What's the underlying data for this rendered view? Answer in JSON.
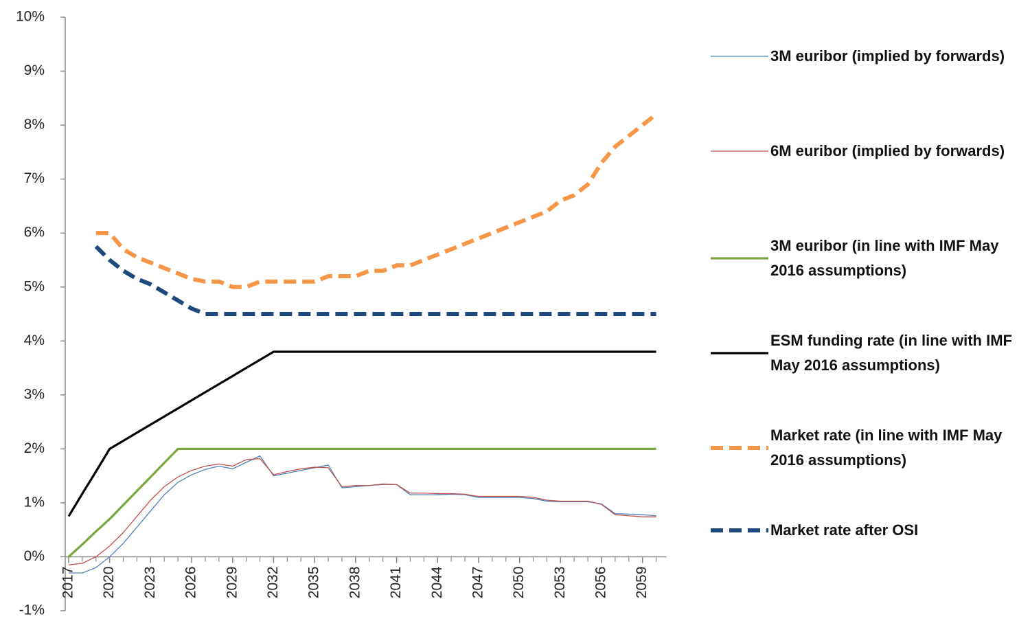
{
  "chart_data": {
    "type": "line",
    "x": [
      2017,
      2018,
      2019,
      2020,
      2021,
      2022,
      2023,
      2024,
      2025,
      2026,
      2027,
      2028,
      2029,
      2030,
      2031,
      2032,
      2033,
      2034,
      2035,
      2036,
      2037,
      2038,
      2039,
      2040,
      2041,
      2042,
      2043,
      2044,
      2045,
      2046,
      2047,
      2048,
      2049,
      2050,
      2051,
      2052,
      2053,
      2054,
      2055,
      2056,
      2057,
      2058,
      2059,
      2060
    ],
    "xlim": [
      2016.75,
      2060.75
    ],
    "xticks": [
      2017,
      2020,
      2023,
      2026,
      2029,
      2032,
      2035,
      2038,
      2041,
      2044,
      2047,
      2050,
      2053,
      2056,
      2059
    ],
    "ylim": [
      -1,
      10
    ],
    "yticks": [
      {
        "value": -1,
        "label": "-1%"
      },
      {
        "value": 0,
        "label": "0%"
      },
      {
        "value": 1,
        "label": "1%"
      },
      {
        "value": 2,
        "label": "2%"
      },
      {
        "value": 3,
        "label": "3%"
      },
      {
        "value": 4,
        "label": "4%"
      },
      {
        "value": 5,
        "label": "5%"
      },
      {
        "value": 6,
        "label": "6%"
      },
      {
        "value": 7,
        "label": "7%"
      },
      {
        "value": 8,
        "label": "8%"
      },
      {
        "value": 9,
        "label": "9%"
      },
      {
        "value": 10,
        "label": "10%"
      }
    ],
    "grid": false,
    "legend": "right",
    "series": [
      {
        "name": "3M euribor (implied by forwards)",
        "color": "#4f81bd",
        "style": "thin",
        "values": [
          -0.3,
          -0.3,
          -0.2,
          0.0,
          0.25,
          0.55,
          0.85,
          1.15,
          1.38,
          1.52,
          1.62,
          1.68,
          1.63,
          1.75,
          1.87,
          1.5,
          1.55,
          1.6,
          1.65,
          1.7,
          1.28,
          1.3,
          1.32,
          1.34,
          1.34,
          1.15,
          1.15,
          1.15,
          1.16,
          1.15,
          1.1,
          1.1,
          1.1,
          1.1,
          1.08,
          1.03,
          1.02,
          1.02,
          1.02,
          0.98,
          0.8,
          0.79,
          0.78,
          0.76
        ]
      },
      {
        "name": "6M euribor (implied by forwards)",
        "color": "#c0504d",
        "style": "thin",
        "values": [
          -0.15,
          -0.12,
          0.0,
          0.2,
          0.45,
          0.75,
          1.05,
          1.3,
          1.48,
          1.6,
          1.68,
          1.72,
          1.68,
          1.8,
          1.82,
          1.52,
          1.58,
          1.63,
          1.66,
          1.65,
          1.3,
          1.32,
          1.32,
          1.35,
          1.34,
          1.18,
          1.18,
          1.17,
          1.17,
          1.16,
          1.12,
          1.12,
          1.12,
          1.12,
          1.1,
          1.05,
          1.03,
          1.03,
          1.03,
          0.97,
          0.78,
          0.76,
          0.74,
          0.74
        ]
      },
      {
        "name": "3M euribor (in line with IMF May 2016 assumptions)",
        "color": "#77a73e",
        "style": "solid",
        "values": [
          0,
          0.23,
          0.47,
          0.7,
          0.96,
          1.22,
          1.48,
          1.74,
          2,
          2,
          2,
          2,
          2,
          2,
          2,
          2,
          2,
          2,
          2,
          2,
          2,
          2,
          2,
          2,
          2,
          2,
          2,
          2,
          2,
          2,
          2,
          2,
          2,
          2,
          2,
          2,
          2,
          2,
          2,
          2,
          2,
          2,
          2,
          2
        ]
      },
      {
        "name": "ESM funding rate (in line with IMF May 2016 assumptions)",
        "color": "#000000",
        "style": "solid",
        "values": [
          0.75,
          1.17,
          1.58,
          2.0,
          2.15,
          2.3,
          2.45,
          2.6,
          2.75,
          2.9,
          3.05,
          3.2,
          3.35,
          3.5,
          3.65,
          3.8,
          3.8,
          3.8,
          3.8,
          3.8,
          3.8,
          3.8,
          3.8,
          3.8,
          3.8,
          3.8,
          3.8,
          3.8,
          3.8,
          3.8,
          3.8,
          3.8,
          3.8,
          3.8,
          3.8,
          3.8,
          3.8,
          3.8,
          3.8,
          3.8,
          3.8,
          3.8,
          3.8,
          3.8
        ]
      },
      {
        "name": "Market rate (in line with IMF May 2016 assumptions)",
        "color": "#f79646",
        "style": "dashed",
        "values": [
          null,
          null,
          6.0,
          6.0,
          5.7,
          5.55,
          5.45,
          5.35,
          5.25,
          5.15,
          5.1,
          5.1,
          5.0,
          5.0,
          5.1,
          5.1,
          5.1,
          5.1,
          5.1,
          5.2,
          5.2,
          5.2,
          5.3,
          5.3,
          5.4,
          5.4,
          5.5,
          5.6,
          5.7,
          5.8,
          5.9,
          6.0,
          6.1,
          6.2,
          6.3,
          6.4,
          6.6,
          6.7,
          6.9,
          7.3,
          7.6,
          7.8,
          8.0,
          8.2
        ]
      },
      {
        "name": "Market rate after OSI",
        "color": "#1f497d",
        "style": "dashed",
        "values": [
          null,
          null,
          5.75,
          5.5,
          5.3,
          5.15,
          5.05,
          4.9,
          4.75,
          4.6,
          4.5,
          4.5,
          4.5,
          4.5,
          4.5,
          4.5,
          4.5,
          4.5,
          4.5,
          4.5,
          4.5,
          4.5,
          4.5,
          4.5,
          4.5,
          4.5,
          4.5,
          4.5,
          4.5,
          4.5,
          4.5,
          4.5,
          4.5,
          4.5,
          4.5,
          4.5,
          4.5,
          4.5,
          4.5,
          4.5,
          4.5,
          4.5,
          4.5,
          4.5
        ]
      }
    ]
  }
}
